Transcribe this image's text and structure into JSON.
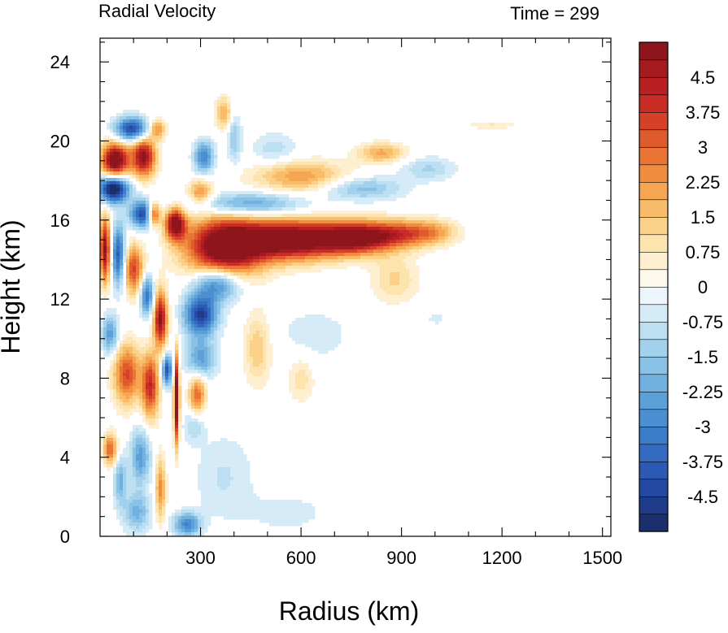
{
  "chart_data": {
    "type": "heatmap",
    "title_left": "Radial Velocity",
    "title_right": "Time = 299",
    "xlabel": "Radius (km)",
    "ylabel": "Height (km)",
    "xlim": [
      0,
      1525
    ],
    "ylim": [
      0,
      25.2
    ],
    "xticks": [
      300,
      600,
      900,
      1200,
      1500
    ],
    "yticks": [
      0,
      4,
      8,
      12,
      16,
      20,
      24
    ],
    "x_minor_step": 100,
    "y_minor_step": 1,
    "colorbar": {
      "min": -5.25,
      "max": 5.25,
      "step": 0.375,
      "labels": [
        4.5,
        3.75,
        3,
        2.25,
        1.5,
        0.75,
        0,
        -0.75,
        -1.5,
        -2.25,
        -3,
        -3.75,
        -4.5
      ],
      "label_text": [
        "4.5",
        "3.75",
        "3",
        "2.25",
        "1.5",
        "0.75",
        "0",
        "-0.75",
        "-1.5",
        "-2.25",
        "-3",
        "-3.75",
        "-4.5"
      ]
    },
    "features": [
      {
        "x": 370,
        "y": 14.6,
        "rx": 110,
        "ry": 1.5,
        "v": 6.0
      },
      {
        "x": 560,
        "y": 15.0,
        "rx": 150,
        "ry": 1.0,
        "v": 6.0
      },
      {
        "x": 760,
        "y": 15.1,
        "rx": 110,
        "ry": 0.8,
        "v": 5.2
      },
      {
        "x": 900,
        "y": 15.3,
        "rx": 100,
        "ry": 0.7,
        "v": 3.0
      },
      {
        "x": 1000,
        "y": 15.4,
        "rx": 70,
        "ry": 0.6,
        "v": 1.5
      },
      {
        "x": 225,
        "y": 15.8,
        "rx": 30,
        "ry": 0.8,
        "v": 5.5
      },
      {
        "x": 350,
        "y": 12.8,
        "rx": 70,
        "ry": 0.9,
        "v": -3.5
      },
      {
        "x": 440,
        "y": 16.8,
        "rx": 160,
        "ry": 0.6,
        "v": -2.5
      },
      {
        "x": 600,
        "y": 18.2,
        "rx": 140,
        "ry": 0.8,
        "v": 2.2
      },
      {
        "x": 840,
        "y": 19.4,
        "rx": 70,
        "ry": 0.5,
        "v": 2.0
      },
      {
        "x": 780,
        "y": 17.6,
        "rx": 120,
        "ry": 0.6,
        "v": -1.8
      },
      {
        "x": 980,
        "y": 18.6,
        "rx": 80,
        "ry": 0.6,
        "v": -1.2
      },
      {
        "x": 1170,
        "y": 20.8,
        "rx": 80,
        "ry": 0.18,
        "v": 0.8
      },
      {
        "x": 520,
        "y": 19.6,
        "rx": 70,
        "ry": 0.8,
        "v": -1.0
      },
      {
        "x": 45,
        "y": 19.0,
        "rx": 40,
        "ry": 0.9,
        "v": 6.0
      },
      {
        "x": 130,
        "y": 19.2,
        "rx": 35,
        "ry": 1.0,
        "v": 5.0
      },
      {
        "x": 40,
        "y": 17.6,
        "rx": 45,
        "ry": 0.7,
        "v": -6.0
      },
      {
        "x": 130,
        "y": 16.3,
        "rx": 40,
        "ry": 0.7,
        "v": -4.5
      },
      {
        "x": 95,
        "y": 20.6,
        "rx": 50,
        "ry": 0.6,
        "v": -4.5
      },
      {
        "x": 170,
        "y": 20.6,
        "rx": 25,
        "ry": 0.5,
        "v": 2.5
      },
      {
        "x": 160,
        "y": 16.3,
        "rx": 20,
        "ry": 0.6,
        "v": 5.0
      },
      {
        "x": 15,
        "y": 14.5,
        "rx": 15,
        "ry": 1.6,
        "v": 5.0
      },
      {
        "x": 55,
        "y": 14.2,
        "rx": 20,
        "ry": 1.5,
        "v": -4.0
      },
      {
        "x": 100,
        "y": 13.5,
        "rx": 30,
        "ry": 1.2,
        "v": 3.5
      },
      {
        "x": 180,
        "y": 11.0,
        "rx": 20,
        "ry": 1.4,
        "v": 5.0
      },
      {
        "x": 140,
        "y": 12.2,
        "rx": 20,
        "ry": 1.0,
        "v": -3.5
      },
      {
        "x": 80,
        "y": 8.2,
        "rx": 40,
        "ry": 1.5,
        "v": 3.5
      },
      {
        "x": 150,
        "y": 7.6,
        "rx": 25,
        "ry": 1.6,
        "v": 4.0
      },
      {
        "x": 200,
        "y": 8.4,
        "rx": 15,
        "ry": 0.8,
        "v": -4.0
      },
      {
        "x": 30,
        "y": 10.2,
        "rx": 25,
        "ry": 1.0,
        "v": -2.5
      },
      {
        "x": 30,
        "y": 4.4,
        "rx": 20,
        "ry": 0.8,
        "v": 3.0
      },
      {
        "x": 60,
        "y": 2.8,
        "rx": 20,
        "ry": 1.2,
        "v": -2.0
      },
      {
        "x": 120,
        "y": 4.0,
        "rx": 30,
        "ry": 1.4,
        "v": -2.5
      },
      {
        "x": 110,
        "y": 1.2,
        "rx": 40,
        "ry": 1.0,
        "v": -2.0
      },
      {
        "x": 180,
        "y": 2.4,
        "rx": 15,
        "ry": 1.6,
        "v": 2.5
      },
      {
        "x": 228,
        "y": 7.0,
        "rx": 8,
        "ry": 2.2,
        "v": 6.0
      },
      {
        "x": 300,
        "y": 11.2,
        "rx": 50,
        "ry": 1.0,
        "v": -4.5
      },
      {
        "x": 300,
        "y": 9.0,
        "rx": 45,
        "ry": 1.0,
        "v": -2.5
      },
      {
        "x": 290,
        "y": 7.2,
        "rx": 25,
        "ry": 1.0,
        "v": 3.0
      },
      {
        "x": 280,
        "y": 5.6,
        "rx": 30,
        "ry": 0.8,
        "v": -1.2
      },
      {
        "x": 260,
        "y": 0.6,
        "rx": 40,
        "ry": 0.6,
        "v": -3.0
      },
      {
        "x": 470,
        "y": 9.5,
        "rx": 40,
        "ry": 1.8,
        "v": 1.5
      },
      {
        "x": 600,
        "y": 8.0,
        "rx": 40,
        "ry": 1.2,
        "v": 1.0
      },
      {
        "x": 880,
        "y": 13.0,
        "rx": 70,
        "ry": 1.2,
        "v": 1.2
      },
      {
        "x": 640,
        "y": 10.2,
        "rx": 120,
        "ry": 1.5,
        "v": -0.6
      },
      {
        "x": 370,
        "y": 3.0,
        "rx": 90,
        "ry": 2.2,
        "v": -0.8
      },
      {
        "x": 560,
        "y": 1.2,
        "rx": 120,
        "ry": 1.0,
        "v": -0.6
      },
      {
        "x": 400,
        "y": 20.2,
        "rx": 20,
        "ry": 1.3,
        "v": -1.5
      },
      {
        "x": 370,
        "y": 21.4,
        "rx": 25,
        "ry": 0.8,
        "v": 2.0
      },
      {
        "x": 310,
        "y": 19.2,
        "rx": 30,
        "ry": 0.8,
        "v": -3.0
      },
      {
        "x": 300,
        "y": 17.4,
        "rx": 35,
        "ry": 0.6,
        "v": 2.5
      },
      {
        "x": 1000,
        "y": 11.0,
        "rx": 100,
        "ry": 0.8,
        "v": -0.4
      }
    ]
  }
}
